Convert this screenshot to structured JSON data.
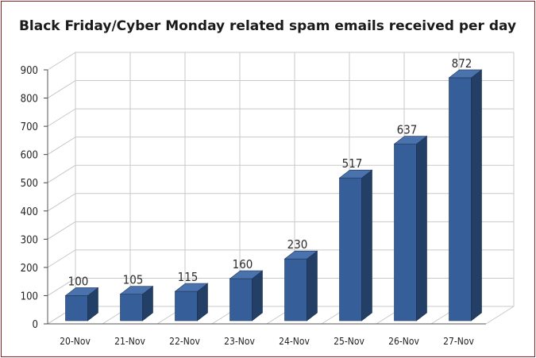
{
  "chart_data": {
    "type": "bar",
    "title": "Black Friday/Cyber Monday related spam emails received per day",
    "xlabel": "",
    "ylabel": "",
    "categories": [
      "20-Nov",
      "21-Nov",
      "22-Nov",
      "23-Nov",
      "24-Nov",
      "25-Nov",
      "26-Nov",
      "27-Nov"
    ],
    "values": [
      100,
      105,
      115,
      160,
      230,
      517,
      637,
      872
    ],
    "data_labels": [
      "100",
      "105",
      "115",
      "160",
      "230",
      "517",
      "637",
      "872"
    ],
    "yticks": [
      "0",
      "100",
      "200",
      "300",
      "400",
      "500",
      "600",
      "700",
      "800",
      "900"
    ],
    "ylim": [
      0,
      900
    ],
    "grid": true,
    "legend": "none",
    "style": "3d-columns",
    "colors": {
      "bar_front": "#365f9a",
      "bar_side": "#243f66",
      "bar_top": "#4a72ad",
      "grid": "#c8c8c8",
      "frame_border": "#8c1f22"
    }
  }
}
